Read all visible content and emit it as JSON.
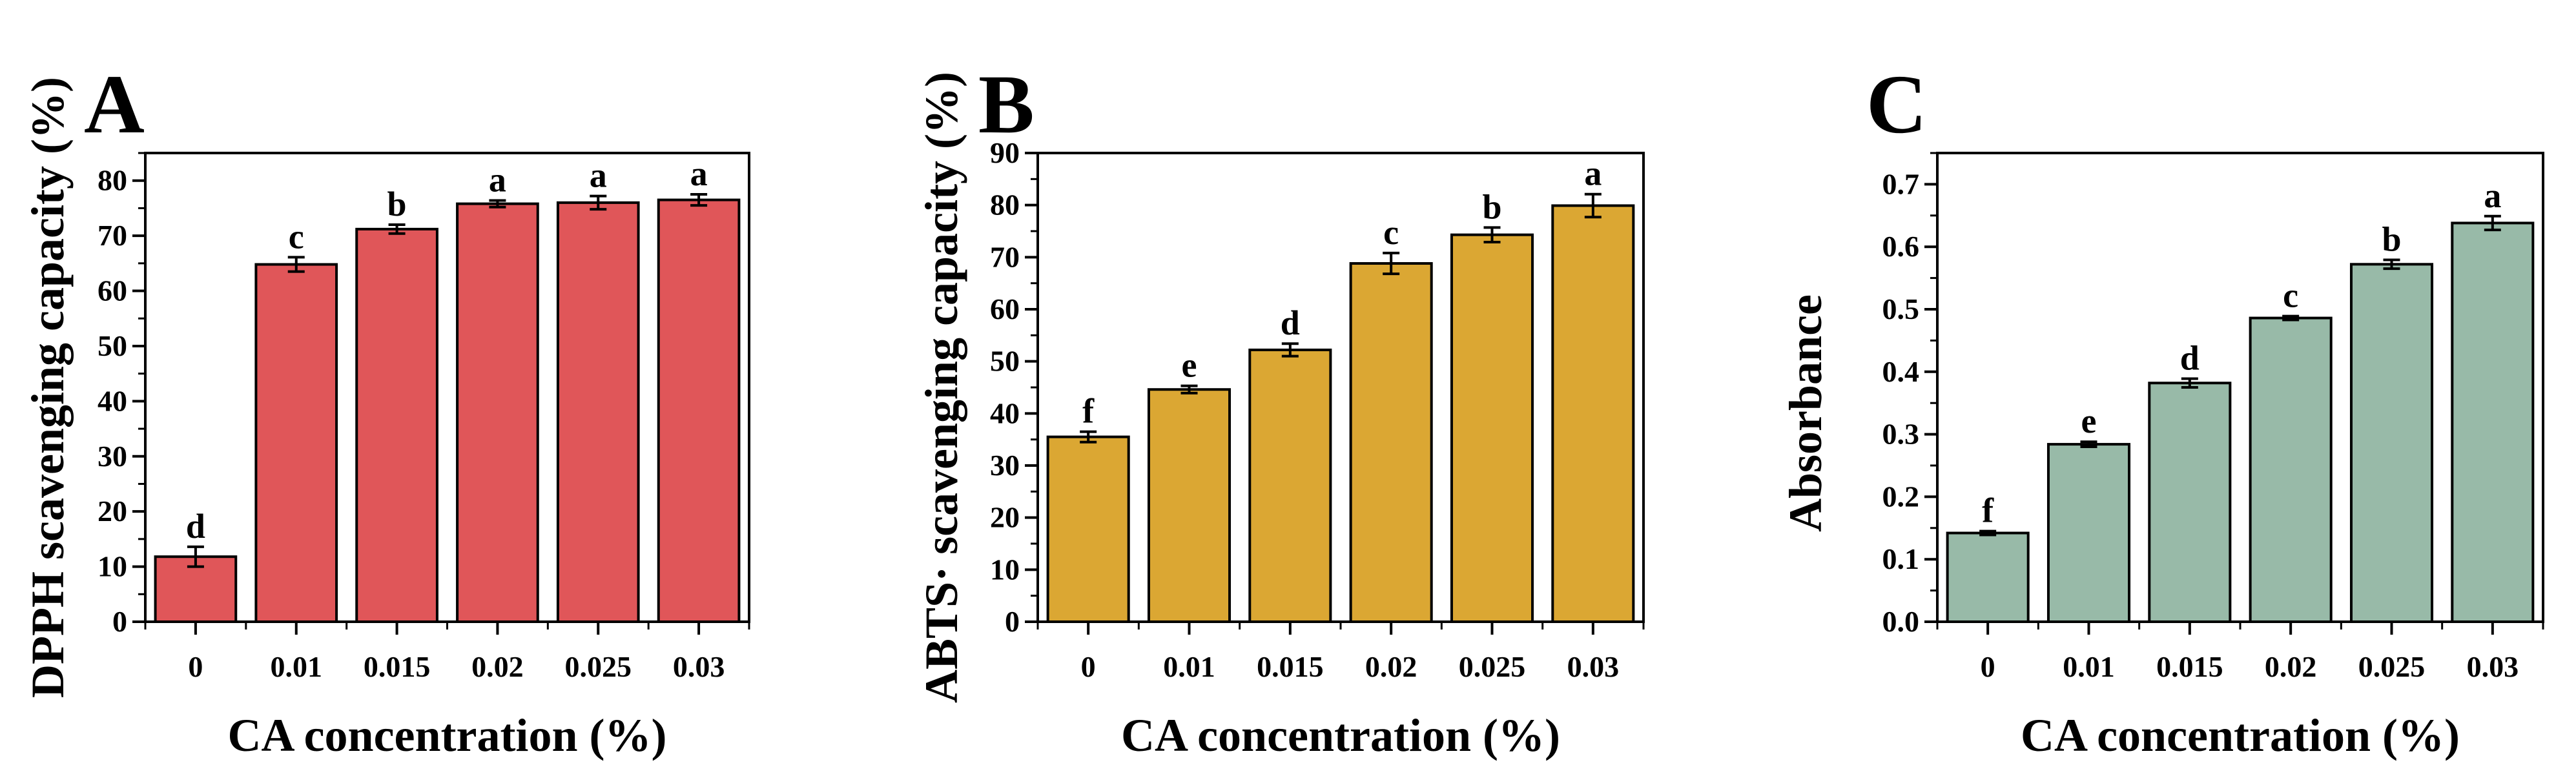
{
  "chart_data": [
    {
      "type": "bar",
      "panel_label": "A",
      "categories": [
        "0",
        "0.01",
        "0.015",
        "0.02",
        "0.025",
        "0.03"
      ],
      "values": [
        11.8,
        64.8,
        71.2,
        75.8,
        76.0,
        76.5
      ],
      "errors": [
        1.8,
        1.3,
        0.8,
        0.6,
        1.2,
        1.0
      ],
      "significance": [
        "d",
        "c",
        "b",
        "a",
        "a",
        "a"
      ],
      "ylim": [
        0,
        85
      ],
      "yticks": [
        0,
        10,
        20,
        30,
        40,
        50,
        60,
        70,
        80
      ],
      "tick_decimals": 0,
      "xlabel": "CA concentration (%)",
      "ylabel": "DPPH scavenging capacity (%)",
      "color": "#e05659"
    },
    {
      "type": "bar",
      "panel_label": "B",
      "categories": [
        "0",
        "0.01",
        "0.015",
        "0.02",
        "0.025",
        "0.03"
      ],
      "values": [
        35.5,
        44.6,
        52.2,
        68.8,
        74.3,
        79.9
      ],
      "errors": [
        1.0,
        0.7,
        1.2,
        2.0,
        1.4,
        2.2
      ],
      "significance": [
        "f",
        "e",
        "d",
        "c",
        "b",
        "a"
      ],
      "ylim": [
        0,
        90
      ],
      "yticks": [
        0,
        10,
        20,
        30,
        40,
        50,
        60,
        70,
        80,
        90
      ],
      "tick_decimals": 0,
      "xlabel": "CA concentration (%)",
      "ylabel": "ABTS· scavenging capacity (%)",
      "color": "#dba733"
    },
    {
      "type": "bar",
      "panel_label": "C",
      "categories": [
        "0",
        "0.01",
        "0.015",
        "0.02",
        "0.025",
        "0.03"
      ],
      "values": [
        0.142,
        0.284,
        0.382,
        0.486,
        0.572,
        0.638
      ],
      "errors": [
        0.003,
        0.004,
        0.007,
        0.003,
        0.007,
        0.011
      ],
      "significance": [
        "f",
        "e",
        "d",
        "c",
        "b",
        "a"
      ],
      "ylim": [
        0,
        0.75
      ],
      "yticks": [
        0,
        0.1,
        0.2,
        0.3,
        0.4,
        0.5,
        0.6,
        0.7
      ],
      "tick_decimals": 1,
      "xlabel": "CA concentration (%)",
      "ylabel": "Absorbance",
      "color": "#98baa8"
    }
  ]
}
